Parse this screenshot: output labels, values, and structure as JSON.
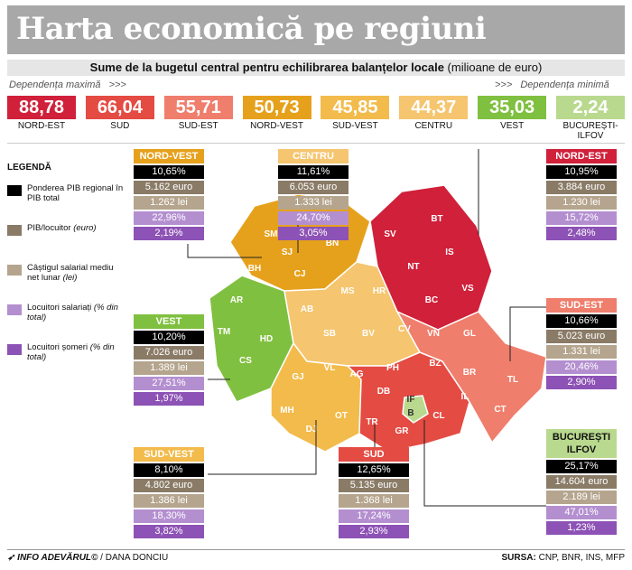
{
  "title": "Harta economică pe regiuni",
  "subtitle": {
    "bold": "Sume de la bugetul central pentru echilibrarea balanțelor locale",
    "rest": " (milioane de euro)"
  },
  "dependence": {
    "max": "Dependența maximă",
    "min": "Dependența minimă",
    "arrows": ">>>"
  },
  "colors": {
    "nord_est": "#d0203a",
    "sud": "#e44b43",
    "sud_est": "#ef7e6c",
    "nord_vest": "#e6a11c",
    "sud_vest": "#f2bb4b",
    "centru": "#f5c56f",
    "vest": "#80c040",
    "bucuresti": "#b9d98e",
    "black": "#000000",
    "brown": "#8a7b67",
    "beige": "#b5a58e",
    "lilac": "#b48fd0",
    "purple": "#8d52b5"
  },
  "chart_data": {
    "type": "bar",
    "title": "Sume de la bugetul central pentru echilibrarea balanțelor locale",
    "ylabel": "milioane de euro",
    "categories": [
      "NORD-EST",
      "SUD",
      "SUD-EST",
      "NORD-VEST",
      "SUD-VEST",
      "CENTRU",
      "VEST",
      "BUCUREȘTI-ILFOV"
    ],
    "values": [
      "88,78",
      "66,04",
      "55,71",
      "50,73",
      "45,85",
      "44,37",
      "35,03",
      "2,24"
    ]
  },
  "legend": {
    "title": "LEGENDĂ",
    "items": [
      {
        "label": "Ponderea PIB regional în PIB total",
        "unit": ""
      },
      {
        "label": "PIB/locuitor",
        "unit": "(euro)"
      },
      {
        "label": "Câștigul salarial mediu net lunar",
        "unit": "(lei)"
      },
      {
        "label": "Locuitori salariați",
        "unit": "(% din total)"
      },
      {
        "label": "Locuitori șomeri",
        "unit": "(% din total)"
      }
    ]
  },
  "regions": {
    "nord_vest": {
      "name": "NORD-VEST",
      "stats": [
        "10,65%",
        "5.162 euro",
        "1.262 lei",
        "22,96%",
        "2,19%"
      ]
    },
    "centru": {
      "name": "CENTRU",
      "stats": [
        "11,61%",
        "6.053 euro",
        "1.333 lei",
        "24,70%",
        "3,05%"
      ]
    },
    "nord_est": {
      "name": "NORD-EST",
      "stats": [
        "10,95%",
        "3.884 euro",
        "1.230 lei",
        "15,72%",
        "2,48%"
      ]
    },
    "vest": {
      "name": "VEST",
      "stats": [
        "10,20%",
        "7.026 euro",
        "1.389 lei",
        "27,51%",
        "1,97%"
      ]
    },
    "sud_est": {
      "name": "SUD-EST",
      "stats": [
        "10,66%",
        "5.023 euro",
        "1.331 lei",
        "20,46%",
        "2,90%"
      ]
    },
    "sud_vest": {
      "name": "SUD-VEST",
      "stats": [
        "8,10%",
        "4.802 euro",
        "1.386 lei",
        "18,30%",
        "3,82%"
      ]
    },
    "sud": {
      "name": "SUD",
      "stats": [
        "12,65%",
        "5.135 euro",
        "1.368 lei",
        "17,24%",
        "2,93%"
      ]
    },
    "bucuresti": {
      "name": "BUCUREȘTI ILFOV",
      "stats": [
        "25,17%",
        "14.604 euro",
        "2.189 lei",
        "47,01%",
        "1,23%"
      ]
    }
  },
  "counties": [
    "SM",
    "MM",
    "SJ",
    "BN",
    "BH",
    "CJ",
    "SV",
    "BT",
    "IS",
    "NT",
    "VS",
    "BC",
    "AR",
    "TM",
    "HD",
    "CS",
    "AB",
    "MS",
    "HR",
    "SB",
    "BV",
    "CV",
    "VN",
    "GL",
    "BZ",
    "BR",
    "TL",
    "GJ",
    "VL",
    "MH",
    "OT",
    "DJ",
    "AG",
    "PH",
    "DB",
    "IL",
    "TR",
    "GR",
    "CL",
    "CT",
    "IF",
    "B"
  ],
  "footer": {
    "source_label": "INFO ADEVĂRUL©",
    "author": " / DANA DONCIU",
    "sursa_label": "SURSA:",
    "sursa": "CNP, BNR, INS, MFP"
  }
}
